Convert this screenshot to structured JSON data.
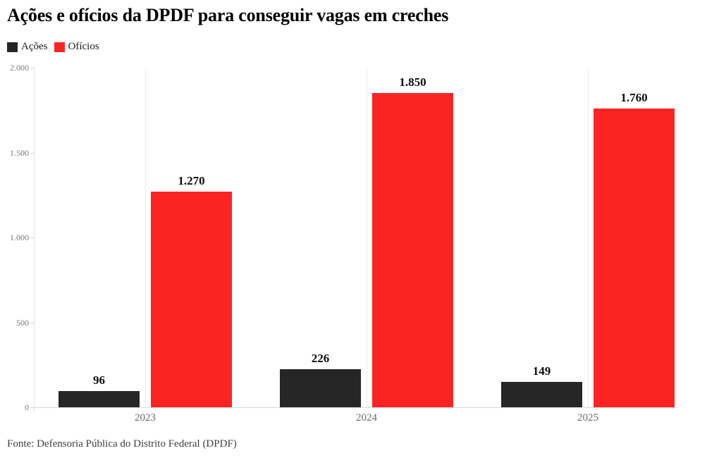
{
  "header": {
    "title": "Ações e ofícios da DPDF para conseguir vagas em creches"
  },
  "legend": [
    {
      "label": "Ações",
      "color": "#262626"
    },
    {
      "label": "Ofícios",
      "color": "#fc2423"
    }
  ],
  "chart_data": {
    "type": "bar",
    "title": "Ações e ofícios da DPDF para conseguir vagas em creches",
    "categories": [
      "2023",
      "2024",
      "2025"
    ],
    "series": [
      {
        "name": "Ações",
        "color": "#262626",
        "values": [
          96,
          226,
          149
        ],
        "labels": [
          "96",
          "226",
          "149"
        ]
      },
      {
        "name": "Ofícios",
        "color": "#fc2423",
        "values": [
          1270,
          1850,
          1760
        ],
        "labels": [
          "1.270",
          "1.850",
          "1.760"
        ]
      }
    ],
    "xlabel": "",
    "ylabel": "",
    "ylim": [
      0,
      2000
    ],
    "yticks": {
      "values": [
        0,
        500,
        1000,
        1500,
        2000
      ],
      "labels": [
        "0",
        "500",
        "1.000",
        "1.500",
        "2.000"
      ]
    },
    "grid": "vertical-category-lines-only",
    "legend_position": "top-left"
  },
  "footer": {
    "source": "Fonte: Defensoria Pública do Distrito Federal (DPDF)"
  }
}
